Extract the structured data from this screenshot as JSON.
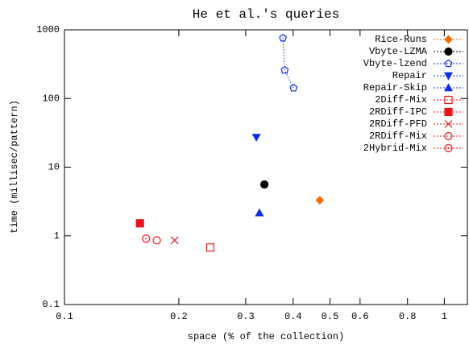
{
  "chart_data": {
    "type": "scatter",
    "title": "He et al.'s queries",
    "xlabel": "space (% of the collection)",
    "ylabel": "time (millisec/pattern)",
    "xlog": true,
    "ylog": true,
    "xlim": [
      0.1,
      1.15
    ],
    "ylim": [
      0.1,
      1000
    ],
    "xticks": [
      0.1,
      0.2,
      0.3,
      0.4,
      0.5,
      0.6,
      0.8,
      1
    ],
    "yticks": [
      0.1,
      1,
      10,
      100,
      1000
    ],
    "legend": "top-right",
    "series": [
      {
        "name": "Rice-Runs",
        "color": "#f06a00",
        "marker": "diamond",
        "x": [
          0.47
        ],
        "values": [
          3.3
        ]
      },
      {
        "name": "Vbyte-LZMA",
        "color": "#000000",
        "marker": "circle",
        "x": [
          0.336
        ],
        "values": [
          5.6
        ]
      },
      {
        "name": "Vbyte-lzend",
        "color": "#1030e0",
        "marker": "pentagon-open",
        "connect": true,
        "x": [
          0.376,
          0.38,
          0.401
        ],
        "values": [
          758,
          258,
          142
        ]
      },
      {
        "name": "Repair",
        "color": "#1030e0",
        "marker": "triangle-down",
        "x": [
          0.32
        ],
        "values": [
          27.3
        ]
      },
      {
        "name": "Repair-Skip",
        "color": "#1030e0",
        "marker": "triangle-up",
        "x": [
          0.326
        ],
        "values": [
          2.16
        ]
      },
      {
        "name": "2Diff-Mix",
        "color": "#e8141c",
        "marker": "square-open",
        "x": [
          0.242
        ],
        "values": [
          0.676
        ]
      },
      {
        "name": "2RDiff-IPC",
        "color": "#e8141c",
        "marker": "square",
        "x": [
          0.158
        ],
        "values": [
          1.52
        ]
      },
      {
        "name": "2RDiff-PFD",
        "color": "#e8141c",
        "marker": "cross",
        "x": [
          0.195
        ],
        "values": [
          0.86
        ]
      },
      {
        "name": "2RDiff-Mix",
        "color": "#e8141c",
        "marker": "circle-open",
        "x": [
          0.175
        ],
        "values": [
          0.86
        ]
      },
      {
        "name": "2Hybrid-Mix",
        "color": "#e8141c",
        "marker": "circle-dot",
        "x": [
          0.164
        ],
        "values": [
          0.91
        ]
      }
    ]
  }
}
